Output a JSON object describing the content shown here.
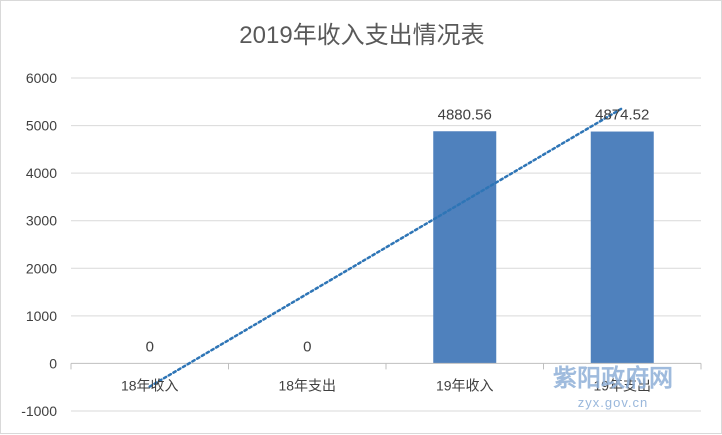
{
  "chart_data": {
    "type": "bar",
    "title": "2019年收入支出情况表",
    "categories": [
      "18年收入",
      "18年支出",
      "19年收入",
      "19年支出"
    ],
    "series": [
      {
        "values": [
          0,
          0,
          4880.56,
          4874.52
        ],
        "color": "#4f81bd"
      }
    ],
    "data_labels": [
      "0",
      "0",
      "4880.56",
      "4874.52"
    ],
    "yticks": [
      "-1000",
      "0",
      "1000",
      "2000",
      "3000",
      "4000",
      "5000",
      "6000"
    ],
    "ylim": [
      -1000,
      6000
    ],
    "grid": true,
    "trendline": {
      "type": "linear",
      "style": "dotted",
      "color": "#2e75b6"
    },
    "legend": "none"
  },
  "watermark": {
    "text": "紫阳政府网",
    "url": "zyx.gov.cn"
  }
}
